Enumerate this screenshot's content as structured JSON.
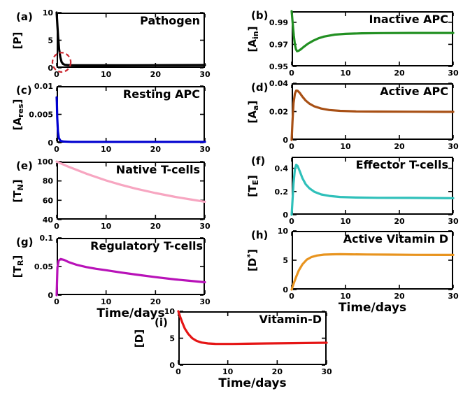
{
  "figure": {
    "background": "#ffffff",
    "axis_color": "#000000"
  },
  "chart_data": [
    {
      "id": "a",
      "panel_label": "(a)",
      "type": "line",
      "title": "Pathogen",
      "ylabel": {
        "pre": "[P",
        "sub": "",
        "sup": "",
        "post": "]"
      },
      "xlabel": "",
      "color": "#000000",
      "xlim": [
        0,
        30
      ],
      "ylim": [
        0,
        10
      ],
      "xticks": [
        "0",
        "10",
        "20",
        "30"
      ],
      "yticks": [
        "0",
        "5",
        "10"
      ],
      "x": [
        0,
        0.15,
        0.3,
        0.5,
        0.75,
        1.0,
        1.3,
        1.7,
        2.2,
        3,
        4,
        6,
        10,
        15,
        20,
        25,
        30
      ],
      "y": [
        10,
        7.6,
        5.6,
        3.4,
        1.9,
        1.05,
        0.7,
        0.55,
        0.5,
        0.47,
        0.46,
        0.46,
        0.46,
        0.47,
        0.48,
        0.49,
        0.5
      ],
      "annotation": {
        "shape": "dashed-ellipse",
        "cx": 1.0,
        "cy": 1.0,
        "rx": 1.85,
        "ry": 1.75,
        "color": "#cc2a33"
      }
    },
    {
      "id": "b",
      "panel_label": "(b)",
      "type": "line",
      "title": "Inactive APC",
      "ylabel": {
        "pre": "[A",
        "sub": "in",
        "sup": "",
        "post": "]"
      },
      "xlabel": "",
      "color": "#229022",
      "xlim": [
        0,
        30
      ],
      "ylim": [
        0.95,
        1.0
      ],
      "xticks": [
        "0",
        "10",
        "20",
        "30"
      ],
      "yticks": [
        "0.95",
        "0.97",
        "0.99"
      ],
      "x": [
        0,
        0.2,
        0.4,
        0.6,
        0.8,
        1.0,
        1.3,
        1.7,
        2.2,
        3,
        4,
        5,
        6,
        8,
        10,
        13,
        17,
        22,
        30
      ],
      "y": [
        1.0,
        0.989,
        0.978,
        0.97,
        0.9655,
        0.9638,
        0.9642,
        0.9655,
        0.9675,
        0.9705,
        0.9733,
        0.9755,
        0.977,
        0.9788,
        0.9795,
        0.98,
        0.9802,
        0.9803,
        0.9803
      ]
    },
    {
      "id": "c",
      "panel_label": "(c)",
      "type": "line",
      "title": "Resting APC",
      "ylabel": {
        "pre": "[A",
        "sub": "res",
        "sup": "",
        "post": "]"
      },
      "xlabel": "",
      "color": "#0000d0",
      "xlim": [
        0,
        30
      ],
      "ylim": [
        0,
        0.01
      ],
      "xticks": [
        "0",
        "10",
        "20",
        "30"
      ],
      "yticks": [
        "0",
        "0.005",
        "0.01"
      ],
      "x": [
        0,
        0.04,
        0.12,
        0.25,
        0.45,
        0.8,
        1.5,
        3,
        30
      ],
      "y": [
        0.008,
        0.0072,
        0.0045,
        0.002,
        0.0008,
        0.0003,
        0.0002,
        0.00015,
        0.00015
      ]
    },
    {
      "id": "d",
      "panel_label": "(d)",
      "type": "line",
      "title": "Active APC",
      "ylabel": {
        "pre": "[A",
        "sub": "a",
        "sup": "",
        "post": "]"
      },
      "xlabel": "",
      "color": "#a85015",
      "xlim": [
        0,
        30
      ],
      "ylim": [
        0,
        0.04
      ],
      "xticks": [
        "0",
        "10",
        "20",
        "30"
      ],
      "yticks": [
        "0",
        "0.02",
        "0.04"
      ],
      "x": [
        0,
        0.15,
        0.35,
        0.6,
        0.85,
        1.1,
        1.5,
        2,
        2.6,
        3.3,
        4.2,
        5.5,
        7,
        9,
        12,
        16,
        22,
        30
      ],
      "y": [
        0,
        0.013,
        0.026,
        0.0325,
        0.0348,
        0.0347,
        0.0332,
        0.0305,
        0.0278,
        0.0256,
        0.0237,
        0.0221,
        0.0211,
        0.0205,
        0.0201,
        0.02,
        0.0199,
        0.0198
      ]
    },
    {
      "id": "e",
      "panel_label": "(e)",
      "type": "line",
      "title": "Native T-cells",
      "ylabel": {
        "pre": "[T",
        "sub": "N",
        "sup": "",
        "post": "]"
      },
      "xlabel": "",
      "color": "#f7a6c1",
      "xlim": [
        0,
        30
      ],
      "ylim": [
        40,
        100
      ],
      "xticks": [
        "0",
        "10",
        "20",
        "30"
      ],
      "yticks": [
        "40",
        "60",
        "80",
        "100"
      ],
      "x": [
        0,
        2,
        4,
        6,
        8,
        10,
        13,
        16,
        20,
        24,
        27,
        30
      ],
      "y": [
        100,
        95.5,
        91.5,
        87.5,
        84,
        80.5,
        76,
        72,
        67.5,
        63.5,
        61,
        58.5
      ]
    },
    {
      "id": "f",
      "panel_label": "(f)",
      "type": "line",
      "title": "Effector T-cells",
      "ylabel": {
        "pre": "[T",
        "sub": "E",
        "sup": "",
        "post": "]"
      },
      "xlabel": "",
      "color": "#2fc0ba",
      "xlim": [
        0,
        30
      ],
      "ylim": [
        0,
        0.5
      ],
      "xticks": [
        "0",
        "10",
        "20",
        "30"
      ],
      "yticks": [
        "0",
        "0.2",
        "0.4"
      ],
      "x": [
        0,
        0.15,
        0.35,
        0.6,
        0.85,
        1.1,
        1.5,
        2,
        2.6,
        3.3,
        4.2,
        5.5,
        7,
        9,
        12,
        16,
        22,
        30
      ],
      "y": [
        0,
        0.12,
        0.27,
        0.39,
        0.43,
        0.42,
        0.375,
        0.315,
        0.263,
        0.228,
        0.198,
        0.175,
        0.162,
        0.153,
        0.148,
        0.146,
        0.145,
        0.143
      ]
    },
    {
      "id": "g",
      "panel_label": "(g)",
      "type": "line",
      "title": "Regulatory T-cells",
      "ylabel": {
        "pre": "[T",
        "sub": "R",
        "sup": "",
        "post": "]"
      },
      "xlabel": "Time/days",
      "color": "#b812b8",
      "xlim": [
        0,
        30
      ],
      "ylim": [
        0,
        0.1
      ],
      "xticks": [
        "0",
        "10",
        "20",
        "30"
      ],
      "yticks": [
        "0",
        "0.05",
        "0.1"
      ],
      "x": [
        0,
        0.15,
        0.4,
        0.8,
        1.5,
        2.5,
        4,
        6,
        8,
        10,
        13,
        16,
        20,
        24,
        27,
        30
      ],
      "y": [
        0,
        0.048,
        0.06,
        0.063,
        0.0615,
        0.0575,
        0.053,
        0.049,
        0.046,
        0.0435,
        0.0395,
        0.036,
        0.0315,
        0.0275,
        0.025,
        0.0225
      ]
    },
    {
      "id": "h",
      "panel_label": "(h)",
      "type": "line",
      "title": "Active Vitamin D",
      "ylabel": {
        "pre": "[D",
        "sub": "",
        "sup": "*",
        "post": "]"
      },
      "xlabel": "Time/days",
      "color": "#e8941f",
      "xlim": [
        0,
        30
      ],
      "ylim": [
        0,
        10
      ],
      "xticks": [
        "0",
        "10",
        "20",
        "30"
      ],
      "yticks": [
        "0",
        "5",
        "10"
      ],
      "x": [
        0,
        0.4,
        0.8,
        1.3,
        2,
        2.8,
        3.7,
        4.7,
        6,
        7.5,
        9,
        11,
        14,
        18,
        23,
        30
      ],
      "y": [
        0,
        1.1,
        2.1,
        3.2,
        4.3,
        5.1,
        5.55,
        5.8,
        5.95,
        6.0,
        6.02,
        6.0,
        5.98,
        5.95,
        5.92,
        5.9
      ]
    },
    {
      "id": "i",
      "panel_label": "(i)",
      "type": "line",
      "title": "Vitamin-D",
      "ylabel": {
        "pre": "[D",
        "sub": "",
        "sup": "",
        "post": "]"
      },
      "xlabel": "Time/days",
      "color": "#e51515",
      "xlim": [
        0,
        30
      ],
      "ylim": [
        0,
        10
      ],
      "xticks": [
        "0",
        "10",
        "20",
        "30"
      ],
      "yticks": [
        "0",
        "5",
        "10"
      ],
      "x": [
        0,
        0.4,
        0.8,
        1.3,
        2,
        2.8,
        3.7,
        4.7,
        6,
        7.5,
        9,
        11,
        14,
        18,
        23,
        30
      ],
      "y": [
        10,
        8.9,
        7.9,
        6.8,
        5.8,
        5.0,
        4.5,
        4.2,
        4.02,
        3.95,
        3.93,
        3.93,
        3.97,
        4.02,
        4.08,
        4.15
      ]
    }
  ]
}
